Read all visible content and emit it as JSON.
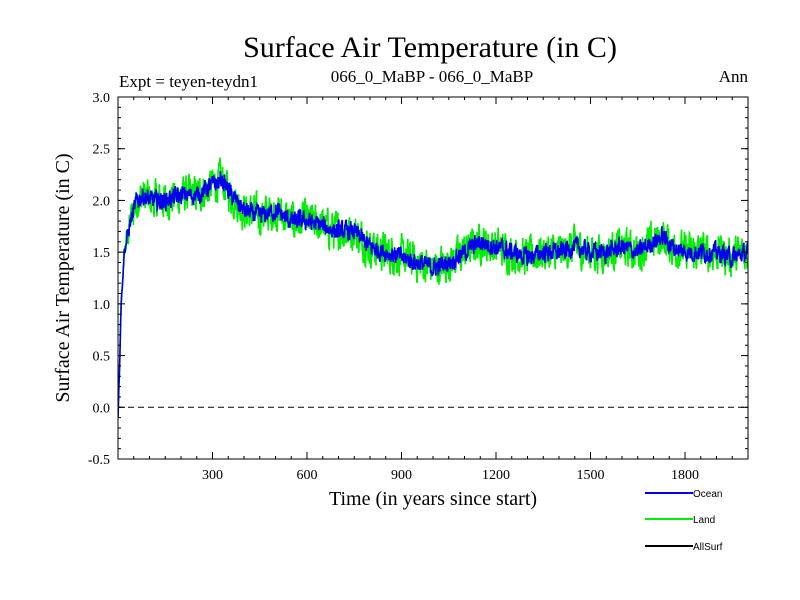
{
  "chart_data": {
    "type": "line",
    "title": "Surface Air Temperature (in C)",
    "subtitle_left": "Expt = teyen-teydn1",
    "subtitle_center": "066_0_MaBP - 066_0_MaBP",
    "subtitle_right": "Ann",
    "xlabel": "Time (in years since start)",
    "ylabel": "Surface Air Temperature (in C)",
    "xlim": [
      0,
      2000
    ],
    "ylim": [
      -0.5,
      3.0
    ],
    "x_ticks": [
      300,
      600,
      900,
      1200,
      1500,
      1800
    ],
    "x_tick_labels": [
      "300",
      "600",
      "900",
      "1200",
      "1500",
      "1800"
    ],
    "y_ticks": [
      -0.5,
      0.0,
      0.5,
      1.0,
      1.5,
      2.0,
      2.5,
      3.0
    ],
    "y_tick_labels": [
      "-0.5",
      "0.0",
      "0.5",
      "1.0",
      "1.5",
      "2.0",
      "2.5",
      "3.0"
    ],
    "zero_line": {
      "value": 0.0,
      "style": "dashed"
    },
    "legend": [
      "Ocean",
      "Land",
      "AllSurf"
    ],
    "legend_position": "bottom-right",
    "series": [
      {
        "name": "Land",
        "color": "#00ee00",
        "noise_amplitude": 0.28,
        "x": [
          0,
          5,
          10,
          20,
          40,
          60,
          80,
          100,
          150,
          200,
          250,
          300,
          330,
          360,
          400,
          450,
          500,
          550,
          600,
          650,
          700,
          750,
          800,
          850,
          900,
          950,
          1000,
          1050,
          1100,
          1150,
          1200,
          1250,
          1300,
          1350,
          1400,
          1450,
          1500,
          1550,
          1600,
          1650,
          1700,
          1730,
          1760,
          1800,
          1850,
          1900,
          1950,
          2000
        ],
        "values": [
          -0.1,
          0.4,
          1.0,
          1.5,
          1.8,
          2.0,
          2.05,
          2.0,
          2.0,
          2.05,
          2.05,
          2.15,
          2.2,
          2.05,
          1.9,
          1.85,
          1.9,
          1.8,
          1.8,
          1.75,
          1.7,
          1.7,
          1.55,
          1.5,
          1.45,
          1.4,
          1.35,
          1.4,
          1.5,
          1.6,
          1.55,
          1.5,
          1.45,
          1.5,
          1.5,
          1.55,
          1.5,
          1.5,
          1.55,
          1.5,
          1.6,
          1.65,
          1.55,
          1.5,
          1.5,
          1.5,
          1.45,
          1.5
        ]
      },
      {
        "name": "Ocean",
        "color": "#0000ee",
        "noise_amplitude": 0.14,
        "x": [
          0,
          5,
          10,
          20,
          40,
          60,
          80,
          100,
          150,
          200,
          250,
          300,
          330,
          360,
          400,
          450,
          500,
          550,
          600,
          650,
          700,
          750,
          800,
          850,
          900,
          950,
          1000,
          1050,
          1100,
          1150,
          1200,
          1250,
          1300,
          1350,
          1400,
          1450,
          1500,
          1550,
          1600,
          1650,
          1700,
          1730,
          1760,
          1800,
          1850,
          1900,
          1950,
          2000
        ],
        "values": [
          -0.1,
          0.4,
          1.0,
          1.5,
          1.8,
          2.0,
          2.05,
          2.0,
          2.0,
          2.05,
          2.05,
          2.15,
          2.2,
          2.05,
          1.9,
          1.85,
          1.9,
          1.8,
          1.8,
          1.75,
          1.7,
          1.7,
          1.55,
          1.5,
          1.45,
          1.4,
          1.35,
          1.4,
          1.5,
          1.6,
          1.55,
          1.5,
          1.45,
          1.5,
          1.5,
          1.55,
          1.5,
          1.5,
          1.55,
          1.5,
          1.6,
          1.65,
          1.55,
          1.5,
          1.5,
          1.5,
          1.45,
          1.5
        ]
      },
      {
        "name": "AllSurf",
        "color": "#000000",
        "noise_amplitude": 0,
        "x": [],
        "values": []
      }
    ]
  }
}
